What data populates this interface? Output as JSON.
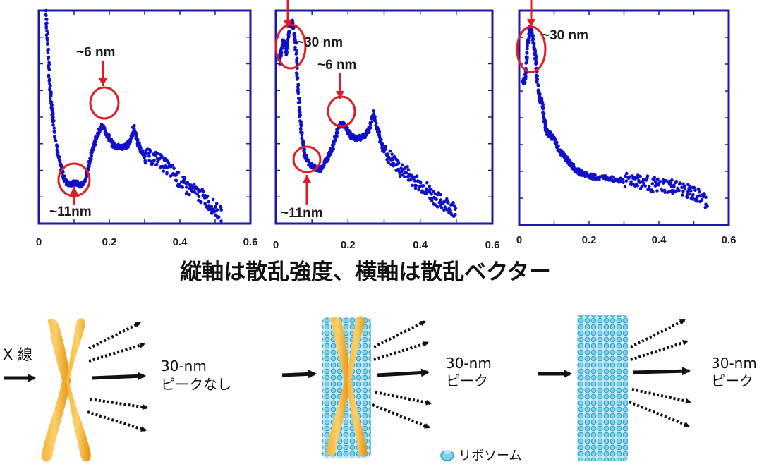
{
  "chart_data": [
    {
      "type": "scatter",
      "xlim": [
        0,
        0.6
      ],
      "x_tick_labels": [
        "0",
        "0.2",
        "0.4",
        "0.6"
      ],
      "y_tick_labels": [],
      "color": "#1010c8",
      "series": [
        {
          "points": [
            [
              0.02,
              1.0
            ],
            [
              0.025,
              0.85
            ],
            [
              0.03,
              0.68
            ],
            [
              0.035,
              0.57
            ],
            [
              0.04,
              0.5
            ],
            [
              0.05,
              0.37
            ],
            [
              0.06,
              0.28
            ],
            [
              0.07,
              0.22
            ],
            [
              0.08,
              0.19
            ],
            [
              0.09,
              0.185
            ],
            [
              0.1,
              0.19
            ],
            [
              0.11,
              0.19
            ],
            [
              0.12,
              0.18
            ],
            [
              0.13,
              0.2
            ],
            [
              0.14,
              0.26
            ],
            [
              0.15,
              0.33
            ],
            [
              0.16,
              0.39
            ],
            [
              0.17,
              0.43
            ],
            [
              0.18,
              0.455
            ],
            [
              0.19,
              0.43
            ],
            [
              0.2,
              0.4
            ],
            [
              0.21,
              0.37
            ],
            [
              0.22,
              0.36
            ],
            [
              0.23,
              0.36
            ],
            [
              0.24,
              0.36
            ],
            [
              0.25,
              0.365
            ],
            [
              0.26,
              0.39
            ],
            [
              0.27,
              0.455
            ],
            [
              0.28,
              0.38
            ],
            [
              0.29,
              0.34
            ],
            [
              0.3,
              0.32
            ],
            [
              0.32,
              0.31
            ],
            [
              0.34,
              0.3
            ],
            [
              0.36,
              0.27
            ],
            [
              0.38,
              0.24
            ],
            [
              0.4,
              0.2
            ],
            [
              0.42,
              0.17
            ],
            [
              0.44,
              0.15
            ],
            [
              0.46,
              0.13
            ],
            [
              0.48,
              0.1
            ],
            [
              0.5,
              0.07
            ],
            [
              0.52,
              0.04
            ]
          ]
        },
        {
          "points": [
            [
              0.01,
              0.76
            ],
            [
              0.015,
              0.81
            ],
            [
              0.02,
              0.85
            ],
            [
              0.025,
              0.85
            ],
            [
              0.03,
              0.8
            ],
            [
              0.035,
              0.88
            ],
            [
              0.04,
              0.94
            ],
            [
              0.045,
              0.95
            ],
            [
              0.05,
              0.92
            ],
            [
              0.055,
              0.83
            ],
            [
              0.06,
              0.68
            ],
            [
              0.065,
              0.55
            ],
            [
              0.07,
              0.45
            ],
            [
              0.075,
              0.37
            ],
            [
              0.08,
              0.32
            ],
            [
              0.09,
              0.29
            ],
            [
              0.1,
              0.27
            ],
            [
              0.11,
              0.26
            ],
            [
              0.12,
              0.25
            ],
            [
              0.13,
              0.27
            ],
            [
              0.14,
              0.3
            ],
            [
              0.15,
              0.33
            ],
            [
              0.16,
              0.37
            ],
            [
              0.17,
              0.43
            ],
            [
              0.18,
              0.47
            ],
            [
              0.19,
              0.46
            ],
            [
              0.2,
              0.43
            ],
            [
              0.21,
              0.41
            ],
            [
              0.22,
              0.4
            ],
            [
              0.23,
              0.4
            ],
            [
              0.24,
              0.41
            ],
            [
              0.25,
              0.42
            ],
            [
              0.26,
              0.45
            ],
            [
              0.27,
              0.52
            ],
            [
              0.28,
              0.45
            ],
            [
              0.29,
              0.39
            ],
            [
              0.3,
              0.34
            ],
            [
              0.32,
              0.3
            ],
            [
              0.34,
              0.26
            ],
            [
              0.36,
              0.24
            ],
            [
              0.38,
              0.21
            ],
            [
              0.4,
              0.18
            ],
            [
              0.42,
              0.16
            ],
            [
              0.44,
              0.12
            ],
            [
              0.46,
              0.1
            ],
            [
              0.48,
              0.08
            ],
            [
              0.5,
              0.06
            ]
          ]
        },
        {
          "points": [
            [
              0.01,
              0.68
            ],
            [
              0.015,
              0.66
            ],
            [
              0.02,
              0.73
            ],
            [
              0.025,
              0.85
            ],
            [
              0.03,
              0.92
            ],
            [
              0.035,
              0.91
            ],
            [
              0.04,
              0.86
            ],
            [
              0.045,
              0.79
            ],
            [
              0.05,
              0.71
            ],
            [
              0.055,
              0.62
            ],
            [
              0.06,
              0.58
            ],
            [
              0.065,
              0.58
            ],
            [
              0.07,
              0.52
            ],
            [
              0.075,
              0.46
            ],
            [
              0.08,
              0.43
            ],
            [
              0.09,
              0.42
            ],
            [
              0.1,
              0.4
            ],
            [
              0.11,
              0.36
            ],
            [
              0.12,
              0.34
            ],
            [
              0.13,
              0.32
            ],
            [
              0.14,
              0.3
            ],
            [
              0.15,
              0.28
            ],
            [
              0.16,
              0.26
            ],
            [
              0.17,
              0.25
            ],
            [
              0.18,
              0.24
            ],
            [
              0.2,
              0.23
            ],
            [
              0.22,
              0.22
            ],
            [
              0.25,
              0.22
            ],
            [
              0.28,
              0.21
            ],
            [
              0.3,
              0.21
            ],
            [
              0.33,
              0.21
            ],
            [
              0.35,
              0.2
            ],
            [
              0.38,
              0.19
            ],
            [
              0.4,
              0.18
            ],
            [
              0.43,
              0.18
            ],
            [
              0.45,
              0.17
            ],
            [
              0.48,
              0.16
            ],
            [
              0.5,
              0.14
            ],
            [
              0.52,
              0.13
            ],
            [
              0.54,
              0.1
            ]
          ]
        }
      ]
    }
  ],
  "plot1": {
    "ann_6nm": "~6 nm",
    "ann_11nm": "~11nm"
  },
  "plot2": {
    "ann_30nm": "~30 nm",
    "ann_6nm": "~6 nm",
    "ann_11nm": "~11nm"
  },
  "plot3": {
    "ann_30nm": "~30 nm"
  },
  "caption": "縦軸は散乱強度、横軸は散乱ベクター",
  "diagram": {
    "xray_label": "X 線",
    "result1_line1": "30-nm",
    "result1_line2": "ピークなし",
    "result2_line1": "30-nm",
    "result2_line2": "ピーク",
    "result3_line1": "30-nm",
    "result3_line2": "ピーク",
    "legend_label": "リボソーム"
  },
  "colors": {
    "axis": "#1a1aa8",
    "marker": "#e01b24",
    "chromosome": "#f2a31a",
    "ribosome": "#5cc0de"
  }
}
